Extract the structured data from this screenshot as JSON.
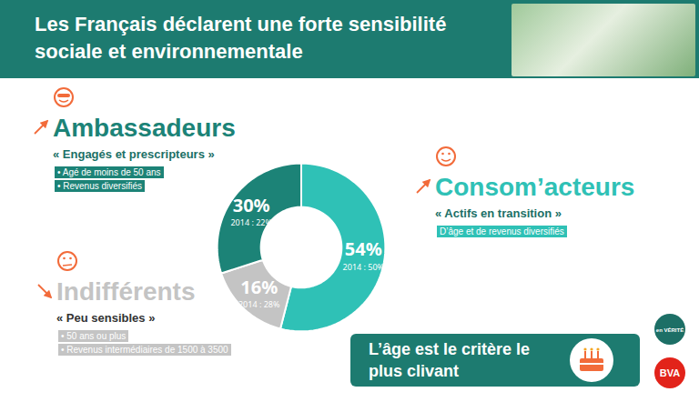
{
  "chart_data": {
    "type": "pie",
    "title": "Les Français déclarent une forte sensibilité sociale et environnementale",
    "categories": [
      "Consom’acteurs",
      "Indifférents",
      "Ambassadeurs"
    ],
    "values": [
      54,
      16,
      30
    ],
    "value_labels": [
      "54%",
      "16%",
      "30%"
    ],
    "colors": [
      "#2fc1b6",
      "#c4c4c4",
      "#1c8377"
    ],
    "data_labels": true,
    "values_2014": [
      50,
      28,
      22
    ],
    "value_labels_2014": [
      "2014 : 50%",
      "2014 : 28%",
      "2014 : 22%"
    ],
    "taglines": [
      "« Actifs en transition »",
      "« Peu sensibles »",
      "« Engagés et prescripteurs »"
    ],
    "details": [
      [
        "D’âge et de revenus diversifiés"
      ],
      [
        "• 50 ans ou plus",
        "• Revenus intermédiaires de 1500 à 3500"
      ],
      [
        "• Agé de moins de 50 ans",
        "• Revenus diversifiés"
      ]
    ],
    "annotations": [
      "L’âge est le critère le plus clivant"
    ],
    "logos": [
      "en VÉRITÉ",
      "BVA"
    ]
  }
}
